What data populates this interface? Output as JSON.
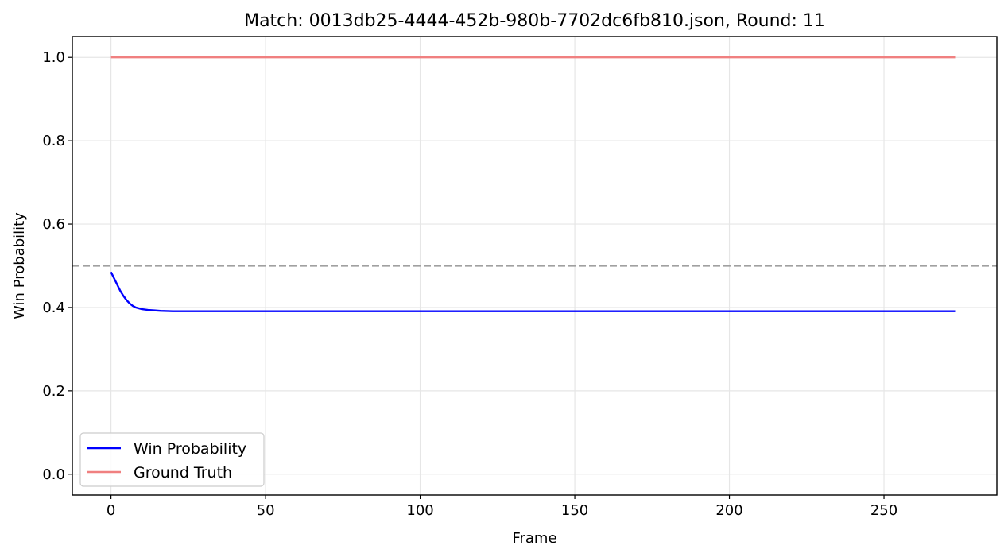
{
  "chart_data": {
    "type": "line",
    "title": "Match: 0013db25-4444-452b-980b-7702dc6fb810.json, Round: 11",
    "xlabel": "Frame",
    "ylabel": "Win Probability",
    "xlim": [
      -12.5,
      286.5
    ],
    "ylim": [
      -0.05,
      1.05
    ],
    "xticks": [
      0,
      50,
      100,
      150,
      200,
      250
    ],
    "yticks": [
      0.0,
      0.2,
      0.4,
      0.6,
      0.8,
      1.0
    ],
    "xtick_labels": [
      "0",
      "50",
      "100",
      "150",
      "200",
      "250"
    ],
    "ytick_labels": [
      "0.0",
      "0.2",
      "0.4",
      "0.6",
      "0.8",
      "1.0"
    ],
    "grid": true,
    "legend_position": "lower-left",
    "threshold": 0.5,
    "series": [
      {
        "name": "Win Probability",
        "color": "#0000ff",
        "x": [
          0,
          1,
          2,
          3,
          4,
          5,
          6,
          7,
          8,
          10,
          12,
          14,
          16,
          18,
          20,
          25,
          30,
          50,
          100,
          150,
          200,
          250,
          273
        ],
        "y": [
          0.485,
          0.47,
          0.455,
          0.44,
          0.428,
          0.418,
          0.41,
          0.404,
          0.4,
          0.396,
          0.394,
          0.393,
          0.392,
          0.3915,
          0.391,
          0.391,
          0.391,
          0.391,
          0.391,
          0.391,
          0.391,
          0.391,
          0.391
        ]
      },
      {
        "name": "Ground Truth",
        "color": "#f08080",
        "x": [
          0,
          273
        ],
        "y": [
          1.0,
          1.0
        ]
      }
    ]
  }
}
